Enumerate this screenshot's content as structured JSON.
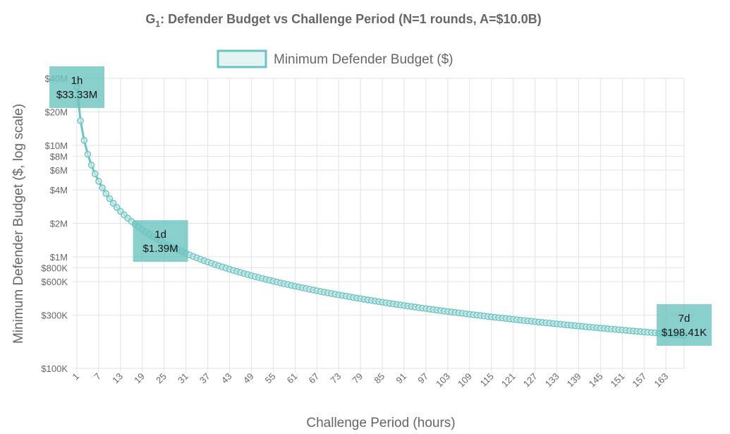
{
  "chart_data": {
    "type": "line",
    "title": "G₁: Defender Budget vs Challenge Period (N=1 rounds, A=$10.0B)",
    "title_main": "G",
    "title_sub": "1",
    "title_rest": ": Defender Budget vs Challenge Period (N=1 rounds, A=$10.0B)",
    "xlabel": "Challenge Period (hours)",
    "ylabel": "Minimum Defender Budget ($, log scale)",
    "y_scale": "log",
    "ylim": [
      100000,
      40000000
    ],
    "xlim": [
      1,
      168
    ],
    "grid": true,
    "legend_position": "top",
    "color": "#6cc4c0",
    "x_tick_labels": [
      "1",
      "7",
      "13",
      "19",
      "25",
      "31",
      "37",
      "43",
      "49",
      "55",
      "61",
      "67",
      "73",
      "79",
      "85",
      "91",
      "97",
      "103",
      "109",
      "115",
      "121",
      "127",
      "133",
      "139",
      "145",
      "151",
      "157",
      "163"
    ],
    "y_ticks": [
      {
        "value": 40000000,
        "label": "$40M"
      },
      {
        "value": 20000000,
        "label": "$20M"
      },
      {
        "value": 10000000,
        "label": "$10M"
      },
      {
        "value": 8000000,
        "label": "$8M"
      },
      {
        "value": 6000000,
        "label": "$6M"
      },
      {
        "value": 4000000,
        "label": "$4M"
      },
      {
        "value": 2000000,
        "label": "$2M"
      },
      {
        "value": 1000000,
        "label": "$1M"
      },
      {
        "value": 800000,
        "label": "$800K"
      },
      {
        "value": 600000,
        "label": "$600K"
      },
      {
        "value": 300000,
        "label": "$300K"
      },
      {
        "value": 100000,
        "label": "$100K"
      }
    ],
    "series": [
      {
        "name": "Minimum Defender Budget ($)",
        "x_start": 1,
        "x_end": 168,
        "value_at_1h": 33333333,
        "decay_exponent": 1
      }
    ],
    "annotations": [
      {
        "x": 1,
        "y": 33333333,
        "line1": "1h",
        "line2": "$33.33M"
      },
      {
        "x": 24,
        "y": 1388889,
        "line1": "1d",
        "line2": "$1.39M"
      },
      {
        "x": 168,
        "y": 198413,
        "line1": "7d",
        "line2": "$198.41K"
      }
    ]
  }
}
